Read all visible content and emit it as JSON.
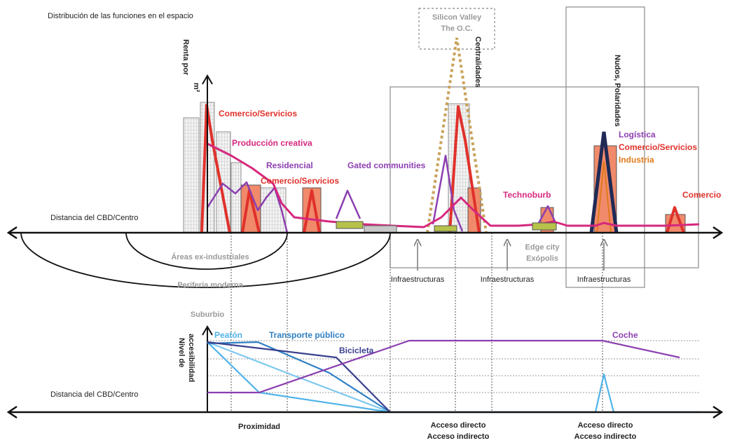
{
  "title": "Distribución de las funciones en el espacio",
  "axes": {
    "top_y_label_1": "Renta por",
    "top_y_label_2": "m²",
    "top_x_label": "Distancia del CBD/Centro",
    "bottom_y_label_1": "Nivel de",
    "bottom_y_label_2": "accesibilidad",
    "bottom_x_label": "Distancia del CBD/Centro"
  },
  "labels": {
    "comercio_servicios_1": "Comercio/Servicios",
    "produccion_creativa": "Producción creativa",
    "residencial": "Residencial",
    "comercio_servicios_2": "Comercio/Servicios",
    "gated_communities": "Gated communities",
    "silicon_valley": "Silicon Valley",
    "the_oc": "The O.C.",
    "centralidades": "Centralidades",
    "nudos_polaridades": "Nudos, Polaridades",
    "logistica": "Logística",
    "comercio_servicios_3": "Comercio/Servicios",
    "industria": "Industria",
    "technoburb": "Technoburb",
    "comercio": "Comercio",
    "areas_ex_industriales": "Áreas ex-industriales",
    "periferia_moderna": "Periferia moderna",
    "suburbio": "Suburbio",
    "edge_city": "Edge city",
    "exopolis": "Exópolis",
    "infraestructuras_1": "Infraestructuras",
    "infraestructuras_2": "Infraestructuras",
    "infraestructuras_3": "Infraestructuras"
  },
  "transport": {
    "peaton": "Peatón",
    "transporte_publico": "Transporte público",
    "bicicleta": "Bicicleta",
    "coche": "Coche"
  },
  "bottom_labels": {
    "proximidad": "Proximidad",
    "acceso_directo_1": "Acceso directo",
    "acceso_indirecto_1": "Acceso indirecto",
    "acceso_directo_2": "Acceso directo",
    "acceso_indirecto_2": "Acceso indirecto"
  },
  "colors": {
    "red": "#e0312b",
    "pink": "#d6287e",
    "purple": "#8c3fb0",
    "orange": "#e07a1c",
    "navy": "#1f2a55",
    "tan": "#c9a25a",
    "blue_light": "#4fb3e8",
    "blue_mid": "#2f7fc4",
    "blue_dark": "#3a3f8f"
  }
}
